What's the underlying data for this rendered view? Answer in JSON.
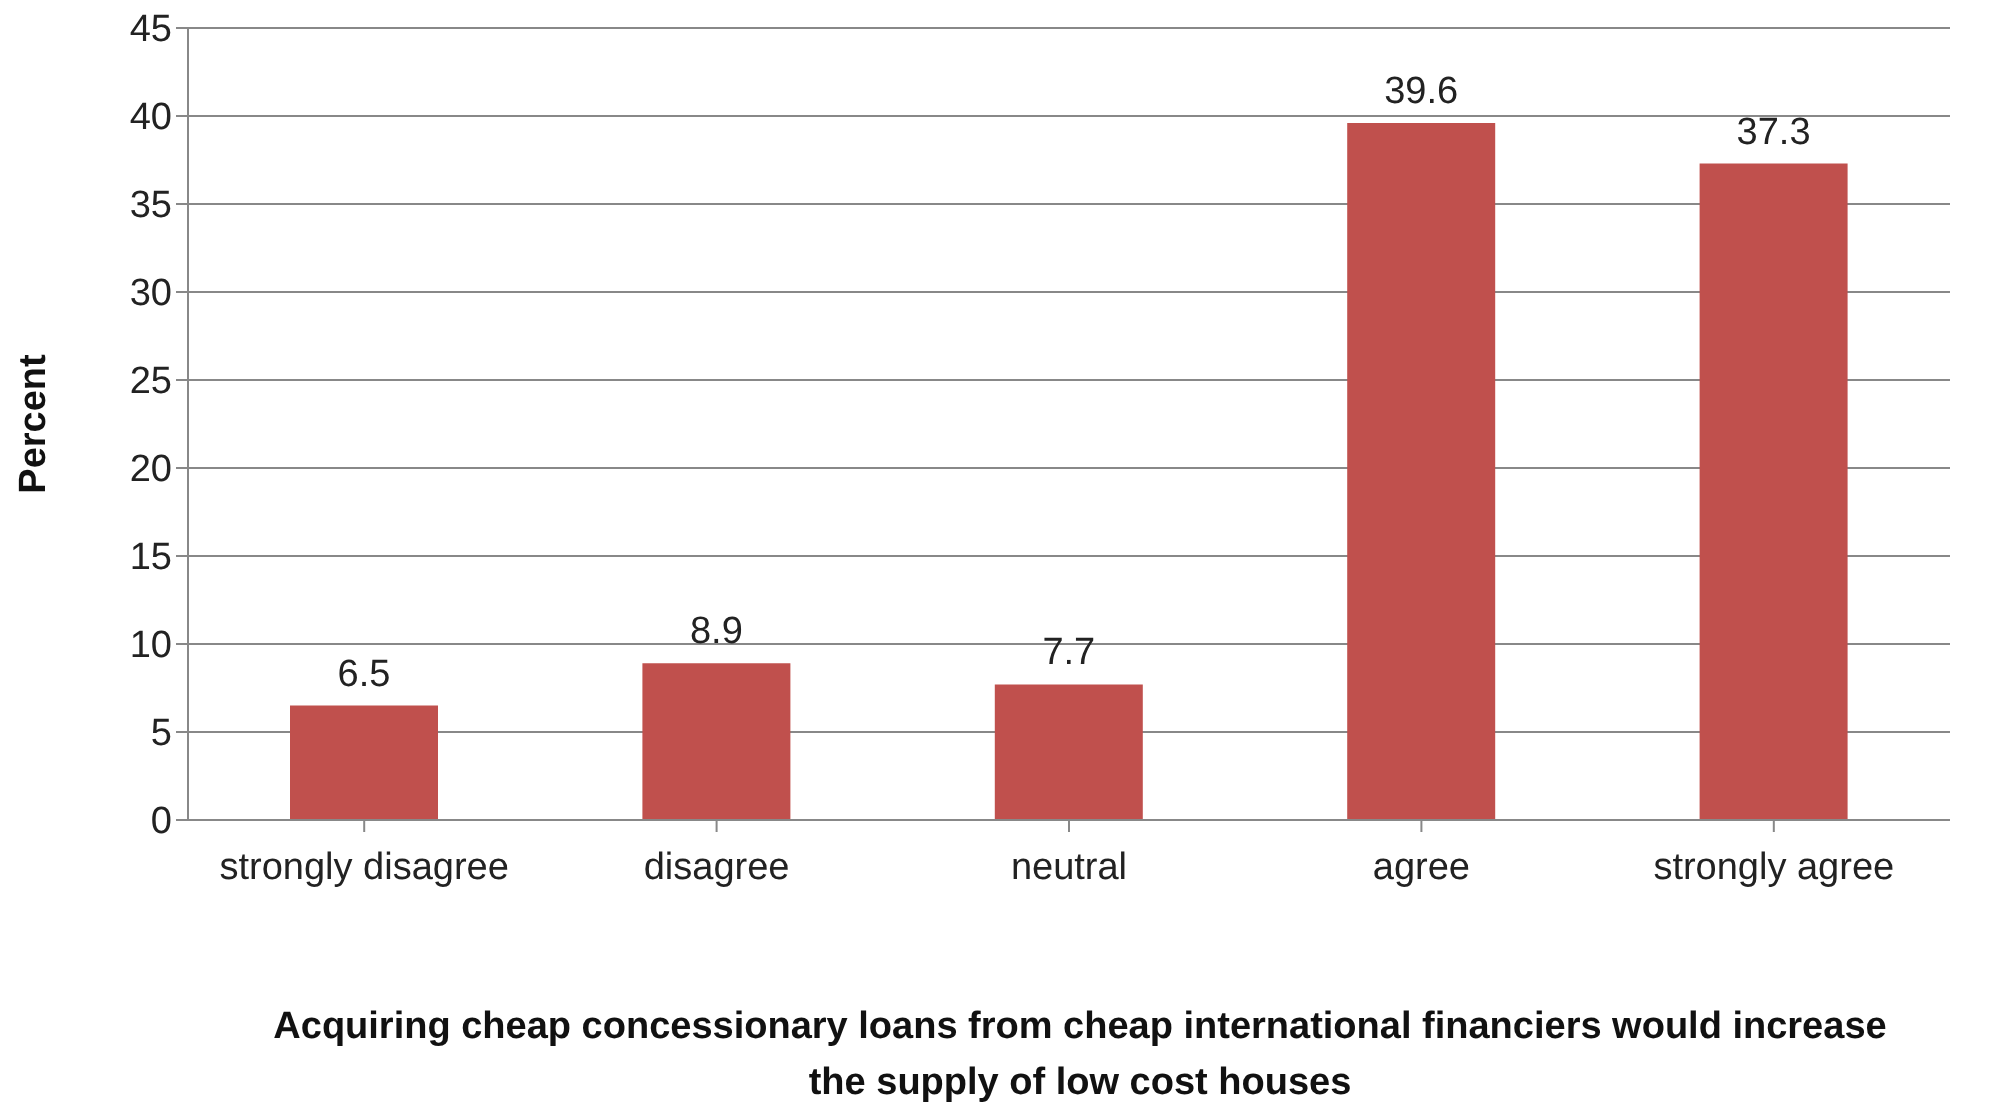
{
  "chart_data": {
    "type": "bar",
    "xlabel": "Acquiring cheap concessionary loans from cheap international financiers would increase the supply of low cost houses",
    "ylabel": "Percent",
    "categories": [
      "strongly disagree",
      "disagree",
      "neutral",
      "agree",
      "strongly agree"
    ],
    "values": [
      6.5,
      8.9,
      7.7,
      39.6,
      37.3
    ],
    "color": "#c0504d",
    "ylim": [
      0,
      45
    ],
    "yticks": [
      0,
      5,
      10,
      15,
      20,
      25,
      30,
      35,
      40,
      45
    ],
    "grid": "y",
    "data_labels": true
  }
}
